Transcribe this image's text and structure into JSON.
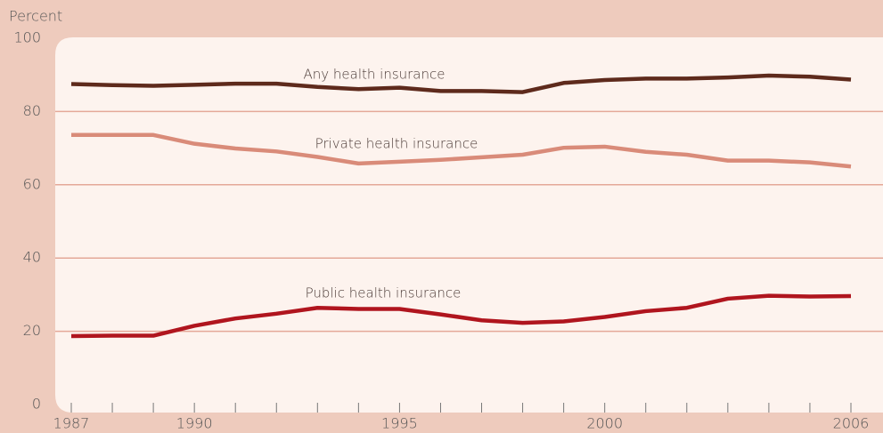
{
  "chart_data": {
    "type": "line",
    "y_label": "Percent",
    "x": [
      1987,
      1988,
      1989,
      1990,
      1991,
      1992,
      1993,
      1994,
      1995,
      1996,
      1997,
      1998,
      1999,
      2000,
      2001,
      2002,
      2003,
      2004,
      2005,
      2006
    ],
    "series": [
      {
        "name": "Any health insurance",
        "color": "#5e2a1c",
        "values": [
          87.5,
          87.2,
          87.0,
          87.3,
          87.6,
          87.6,
          86.7,
          86.1,
          86.5,
          85.6,
          85.6,
          85.3,
          87.8,
          88.6,
          89.0,
          89.0,
          89.3,
          89.8,
          89.5,
          88.7
        ]
      },
      {
        "name": "Private health insurance",
        "color": "#d98b79",
        "values": [
          73.6,
          73.6,
          73.6,
          71.2,
          69.9,
          69.1,
          67.6,
          65.8,
          66.3,
          66.8,
          67.5,
          68.2,
          70.1,
          70.4,
          69.0,
          68.2,
          66.6,
          66.6,
          66.1,
          65.0
        ]
      },
      {
        "name": "Public health insurance",
        "color": "#b0151e",
        "values": [
          18.7,
          18.8,
          18.8,
          21.5,
          23.5,
          24.8,
          26.4,
          26.1,
          26.1,
          24.6,
          23.0,
          22.3,
          22.7,
          23.9,
          25.5,
          26.4,
          28.9,
          29.7,
          29.5,
          29.6
        ]
      }
    ],
    "xlim": [
      1987,
      2006
    ],
    "xticks": [
      1987,
      1990,
      1995,
      2000,
      2006
    ],
    "ylim": [
      0,
      100
    ],
    "yticks": [
      0,
      20,
      40,
      60,
      80,
      100
    ],
    "grid": true
  }
}
